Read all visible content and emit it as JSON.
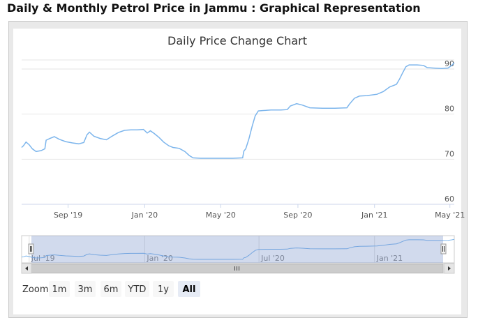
{
  "page": {
    "heading": "Daily & Monthly Petrol Price in Jammu : Graphical Representation"
  },
  "range_selector": {
    "zoom_label": "Zoom",
    "buttons": [
      "1m",
      "3m",
      "6m",
      "YTD",
      "1y",
      "All"
    ],
    "selected": "All"
  },
  "navigator": {
    "labels": [
      "Jul '19",
      "Jan '20",
      "Jul '20",
      "Jan '21"
    ]
  },
  "colors": {
    "series": "#7cb5ec",
    "navigator_mask": "rgba(102,133,194,0.3)",
    "grid": "#e6e6e6",
    "active_button": "#e6ebf5"
  },
  "chart_data": {
    "type": "line",
    "title": "Daily Price Change Chart",
    "xlabel": "",
    "ylabel": "",
    "ylim": [
      60,
      92
    ],
    "yticks": [
      60,
      70,
      80,
      90
    ],
    "xticks": [
      "Sep '19",
      "Jan '20",
      "May '20",
      "Sep '20",
      "Jan '21",
      "May '21"
    ],
    "xrange": [
      "2019-06-19",
      "2021-05-08"
    ],
    "grid": true,
    "legend": "none",
    "series": [
      {
        "points": [
          [
            "2019-06-19",
            72.6
          ],
          [
            "2019-06-22",
            73.0
          ],
          [
            "2019-06-26",
            73.8
          ],
          [
            "2019-07-01",
            73.2
          ],
          [
            "2019-07-06",
            72.3
          ],
          [
            "2019-07-12",
            71.7
          ],
          [
            "2019-07-20",
            71.9
          ],
          [
            "2019-07-26",
            72.3
          ],
          [
            "2019-07-28",
            74.2
          ],
          [
            "2019-08-03",
            74.6
          ],
          [
            "2019-08-10",
            75.0
          ],
          [
            "2019-08-18",
            74.4
          ],
          [
            "2019-08-28",
            73.9
          ],
          [
            "2019-09-08",
            73.6
          ],
          [
            "2019-09-18",
            73.4
          ],
          [
            "2019-09-26",
            73.7
          ],
          [
            "2019-10-01",
            75.4
          ],
          [
            "2019-10-05",
            76.0
          ],
          [
            "2019-10-12",
            75.1
          ],
          [
            "2019-10-22",
            74.6
          ],
          [
            "2019-11-01",
            74.3
          ],
          [
            "2019-11-10",
            75.1
          ],
          [
            "2019-11-20",
            75.9
          ],
          [
            "2019-11-30",
            76.4
          ],
          [
            "2019-12-10",
            76.5
          ],
          [
            "2019-12-20",
            76.5
          ],
          [
            "2019-12-30",
            76.6
          ],
          [
            "2020-01-05",
            75.8
          ],
          [
            "2020-01-10",
            76.3
          ],
          [
            "2020-01-16",
            75.7
          ],
          [
            "2020-01-24",
            74.8
          ],
          [
            "2020-01-31",
            73.8
          ],
          [
            "2020-02-08",
            73.0
          ],
          [
            "2020-02-15",
            72.6
          ],
          [
            "2020-02-25",
            72.4
          ],
          [
            "2020-03-05",
            71.7
          ],
          [
            "2020-03-12",
            70.8
          ],
          [
            "2020-03-18",
            70.3
          ],
          [
            "2020-03-30",
            70.2
          ],
          [
            "2020-04-15",
            70.2
          ],
          [
            "2020-05-01",
            70.2
          ],
          [
            "2020-05-20",
            70.2
          ],
          [
            "2020-06-05",
            70.3
          ],
          [
            "2020-06-07",
            71.8
          ],
          [
            "2020-06-10",
            72.3
          ],
          [
            "2020-06-15",
            74.5
          ],
          [
            "2020-06-20",
            77.2
          ],
          [
            "2020-06-25",
            79.6
          ],
          [
            "2020-06-30",
            80.7
          ],
          [
            "2020-07-08",
            80.8
          ],
          [
            "2020-07-20",
            80.9
          ],
          [
            "2020-08-05",
            80.9
          ],
          [
            "2020-08-15",
            81.0
          ],
          [
            "2020-08-20",
            81.8
          ],
          [
            "2020-08-30",
            82.3
          ],
          [
            "2020-09-08",
            82.0
          ],
          [
            "2020-09-20",
            81.4
          ],
          [
            "2020-10-10",
            81.3
          ],
          [
            "2020-10-30",
            81.3
          ],
          [
            "2020-11-18",
            81.4
          ],
          [
            "2020-11-22",
            82.2
          ],
          [
            "2020-11-30",
            83.5
          ],
          [
            "2020-12-08",
            84.0
          ],
          [
            "2020-12-20",
            84.1
          ],
          [
            "2021-01-05",
            84.4
          ],
          [
            "2021-01-15",
            85.0
          ],
          [
            "2021-01-25",
            86.0
          ],
          [
            "2021-02-05",
            86.6
          ],
          [
            "2021-02-10",
            87.8
          ],
          [
            "2021-02-15",
            89.2
          ],
          [
            "2021-02-20",
            90.5
          ],
          [
            "2021-02-25",
            90.9
          ],
          [
            "2021-03-10",
            90.9
          ],
          [
            "2021-03-20",
            90.8
          ],
          [
            "2021-03-26",
            90.3
          ],
          [
            "2021-04-05",
            90.2
          ],
          [
            "2021-04-18",
            90.1
          ],
          [
            "2021-04-28",
            90.2
          ],
          [
            "2021-05-04",
            90.8
          ],
          [
            "2021-05-08",
            91.4
          ]
        ]
      }
    ]
  }
}
